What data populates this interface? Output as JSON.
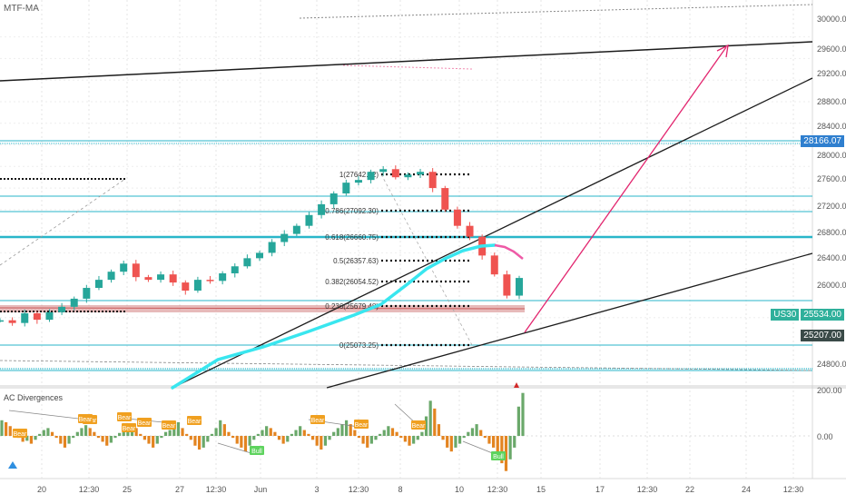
{
  "main_indicator": "MTF-MA",
  "sub_indicator": "AC Divergences",
  "colors": {
    "line_blue": "#29b6c9",
    "ema_cyan": "#39e6ef",
    "ema_pink": "#ee5aa6",
    "red_band": "#d48282",
    "arrow": "#e2256e",
    "trend": "#1c1c1c",
    "up": "#26a69a",
    "down": "#ef5350",
    "hist_green": "#6aa86a",
    "hist_orange": "#e38420",
    "bear": "#f0a020",
    "bull": "#5ed35e",
    "tag_dark": "#3a4a48",
    "tag_teal": "#2fb09b",
    "tag_blue": "#2f7fcf"
  },
  "price_axis": [
    "30000.00",
    "29600.00",
    "29200.00",
    "28800.00",
    "28400.00",
    "28000.00",
    "27600.00",
    "27200.00",
    "26800.00",
    "26400.00",
    "26000.00",
    "24800.00"
  ],
  "indicator_axis": [
    "200.00",
    "0.00"
  ],
  "time_axis": [
    "20",
    "12:30",
    "25",
    "27",
    "12:30",
    "Jun",
    "3",
    "12:30",
    "8",
    "10",
    "12:30",
    "15",
    "17",
    "12:30",
    "22",
    "24",
    "12:30"
  ],
  "price_tags": {
    "level": "28166.07",
    "symbol": "US30",
    "last": "25534.00",
    "low": "25207.00"
  },
  "fib_levels": [
    "1(27642.02)",
    "0.786(27092.30)",
    "0.618(26660.75)",
    "0.5(26357.63)",
    "0.382(26054.52)",
    "0.236(25679.48)",
    "0(25073.25)"
  ],
  "labels": {
    "bear": "Bear",
    "bull": "Bull"
  },
  "chart_data": [
    {
      "type": "candlestick",
      "title": "MTF-MA",
      "symbol": "US30",
      "price_axis_ticks": [
        30000,
        29600,
        29200,
        28800,
        28400,
        28000,
        27600,
        27200,
        26800,
        26400,
        26000,
        24800
      ],
      "ylim_visible_approx": [
        24600,
        30150
      ],
      "fibonacci_retracement": [
        {
          "ratio": 1,
          "price": 27642.02
        },
        {
          "ratio": 0.786,
          "price": 27092.3
        },
        {
          "ratio": 0.618,
          "price": 26660.75
        },
        {
          "ratio": 0.5,
          "price": 26357.63
        },
        {
          "ratio": 0.382,
          "price": 26054.52
        },
        {
          "ratio": 0.236,
          "price": 25679.48
        },
        {
          "ratio": 0,
          "price": 25073.25
        }
      ],
      "marked_prices": {
        "horizontal_level": 28166.07,
        "last_price": 25534.0,
        "recent_low": 25207.0
      },
      "x_tick_labels": [
        "20",
        "12:30",
        "25",
        "27",
        "12:30",
        "Jun",
        "3",
        "12:30",
        "8",
        "10",
        "12:30",
        "15",
        "17",
        "12:30",
        "22",
        "24",
        "12:30"
      ],
      "price_path_close_approx": [
        24750,
        24700,
        24880,
        24760,
        24900,
        25000,
        25150,
        25350,
        25500,
        25650,
        25800,
        25550,
        25500,
        25600,
        25450,
        25300,
        25500,
        25480,
        25620,
        25750,
        25900,
        26000,
        26200,
        26350,
        26500,
        26700,
        26900,
        27100,
        27300,
        27350,
        27500,
        27550,
        27400,
        27450,
        27500,
        27200,
        26800,
        26500,
        26300,
        25950,
        25600,
        25207,
        25534
      ],
      "annotations": [
        "trend lines",
        "horizontal support/resistance levels",
        "projection arrow to ~29600"
      ]
    },
    {
      "type": "bar",
      "title": "AC Divergences",
      "axis_ticks": [
        200,
        0
      ],
      "values_approx": [
        80,
        70,
        50,
        20,
        -10,
        -30,
        -25,
        -40,
        -20,
        10,
        30,
        40,
        20,
        -10,
        -40,
        -60,
        -40,
        -10,
        20,
        40,
        55,
        40,
        20,
        -10,
        -30,
        -50,
        -35,
        -10,
        15,
        30,
        45,
        60,
        40,
        10,
        -20,
        -40,
        -60,
        -40,
        -10,
        20,
        30,
        50,
        70,
        40,
        10,
        -20,
        -50,
        -70,
        -60,
        -30,
        10,
        40,
        80,
        60,
        20,
        -10,
        -40,
        -60,
        -80,
        -50,
        -20,
        10,
        30,
        50,
        40,
        20,
        -20,
        -40,
        -30,
        10,
        30,
        50,
        30,
        10,
        -20,
        -50,
        -70,
        -50,
        -20,
        20,
        40,
        60,
        80,
        60,
        30,
        -10,
        -40,
        -60,
        -40,
        -20,
        10,
        30,
        50,
        40,
        20,
        -10,
        -30,
        -50,
        -40,
        -20,
        20,
        100,
        180,
        140,
        60,
        -20,
        -60,
        -80,
        -60,
        -40,
        -10,
        20,
        40,
        60,
        30,
        -10,
        -40,
        -60,
        -90,
        -140,
        -180,
        -120,
        -60,
        150,
        220
      ]
    }
  ]
}
